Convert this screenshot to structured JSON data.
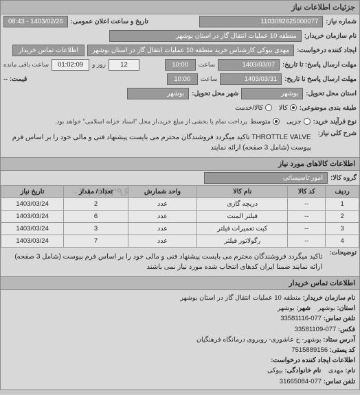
{
  "panel_title": "جزئیات اطلاعات نیاز",
  "fields": {
    "need_no_label": "شماره نیاز:",
    "need_no": "1103092625000077",
    "announce_label": "تاریخ و ساعت اعلان عمومی:",
    "announce_value": "1403/02/26 - 08:43",
    "buyer_name_label": "نام سازمان خریدار:",
    "buyer_name": "منطقه 10 عملیات انتقال گاز در استان بوشهر",
    "requester_label": "ایجاد کننده درخواست:",
    "requester": "مهدی بیوکی کارشناس خرید منطقه 10 عملیات انتقال گاز در استان بوشهر",
    "contact_btn": "اطلاعات تماس خریدار",
    "deadline_send_label": "مهلت ارسال پاسخ: تا تاریخ:",
    "deadline_send_date": "1403/03/07",
    "time_label": "ساعت",
    "deadline_send_time": "10:00",
    "remaining_days": "12",
    "remaining_days_label": "روز و",
    "remaining_time": "01:02:09",
    "remaining_suffix": "ساعت باقی مانده",
    "deadline_resp_label": "مهلت ارسال پاسخ تا تاریخ:",
    "deadline_resp_date": "1403/03/31",
    "deadline_resp_time": "10:00",
    "price_label": "قیمت: --",
    "delivery_state_label": "استان محل تحویل:",
    "delivery_state": "بوشهر",
    "delivery_city_label": "شهر محل تحویل:",
    "delivery_city": "بوشهر",
    "category_label": "طبقه بندی موضوعی:",
    "process_type_label": "نوع فرآیند خرید:",
    "process_note": "پرداخت تمام یا بخشی از مبلغ خرید،از محل \"اسناد خزانه اسلامی\" خواهد بود."
  },
  "category_options": [
    {
      "label": "کالا",
      "checked": true
    },
    {
      "label": "کالا/خدمت",
      "checked": false
    }
  ],
  "process_options": [
    {
      "label": "جزیی",
      "checked": false
    },
    {
      "label": "متوسط",
      "checked": true
    }
  ],
  "main_desc": {
    "label": "شرح کلی نیاز:",
    "text": "THROTTLE VALVE تاکید میگردد فروشندگان محترم می بایست پیشنهاد فنی و مالی خود را بر اساس فرم پیوست (شامل 3 صفحه) ارائه نمایند"
  },
  "goods_section_title": "اطلاعات کالاهای مورد نیاز",
  "goods_group_label": "گروه کالا:",
  "goods_group_value": "امور تاسیساتی",
  "table": {
    "columns": [
      "ردیف",
      "کد کالا",
      "نام کالا",
      "واحد شمارش",
      "تعداد / مقدار",
      "تاریخ نیاز"
    ],
    "rows": [
      [
        "1",
        "--",
        "دریچه گازی",
        "عدد",
        "2",
        "1403/03/24"
      ],
      [
        "2",
        "--",
        "فیلتر المنت",
        "عدد",
        "6",
        "1403/03/24"
      ],
      [
        "3",
        "--",
        "کیت تعمیرات فیلتر",
        "عدد",
        "3",
        "1403/03/24"
      ],
      [
        "4",
        "--",
        "رگولاتور فیلتر",
        "عدد",
        "7",
        "1403/03/24"
      ]
    ],
    "watermark": "۰۲۱-۳۴۳۹۶"
  },
  "explain": {
    "label": "توضیحات:",
    "text": "تاکید میگردد فروشندگان محترم می بایست پیشنهاد فنی و مالی خود را بر اساس فرم پیوست (شامل 3 صفحه) ارائه نمایند ضمنا ایران کدهای انتخاب شده مورد نیاز نمی باشند"
  },
  "contact_section_title": "اطلاعات تماس خریدار",
  "contact": {
    "org_label": "نام سازمان خریدار:",
    "org": "منطقه 10 عملیات انتقال گاز در استان بوشهر",
    "province_label": "استان:",
    "province": "بوشهر",
    "city_label": "شهر:",
    "city": "بوشهر",
    "phone_label": "تلفن تماس:",
    "phone": "077-33581116",
    "fax_label": "فکس:",
    "fax": "077-33581109",
    "address_label": "آدرس ستاد:",
    "address": "بوشهر- خ عاشوری- روبروی درمانگاه فرهنگیان",
    "postal_label": "کد پستی:",
    "postal": "7515889156",
    "creator_section": "اطلاعات ایجاد کننده درخواست:",
    "name_label": "نام:",
    "name": "مهدی",
    "lname_label": "نام خانوادگی:",
    "lname": "بیوکی",
    "cphone_label": "تلفن تماس:",
    "cphone": "077-31665084"
  },
  "colors": {
    "panel_bg": "#d8d8d8",
    "header_bg": "#b8b8b8",
    "box_bg": "#999999",
    "border": "#888888"
  }
}
